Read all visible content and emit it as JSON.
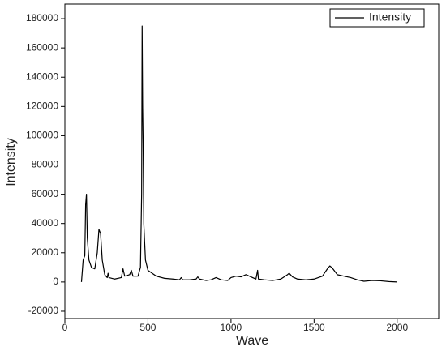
{
  "chart_data": {
    "type": "line",
    "x_label": "Wave",
    "y_label": "Intensity",
    "xlim": [
      0,
      2250
    ],
    "xticks": [
      0,
      500,
      1000,
      1500,
      2000
    ],
    "ylim": [
      -25000,
      190000
    ],
    "yticks": [
      -20000,
      0,
      20000,
      40000,
      60000,
      80000,
      100000,
      120000,
      140000,
      160000,
      180000
    ],
    "legend": "upper right",
    "grid": false,
    "series": [
      {
        "name": "Intensity",
        "color": "#000000",
        "x": [
          100,
          110,
          120,
          125,
          130,
          135,
          145,
          160,
          180,
          195,
          205,
          215,
          225,
          240,
          255,
          260,
          265,
          300,
          340,
          350,
          360,
          390,
          400,
          410,
          440,
          455,
          462,
          465,
          468,
          471,
          475,
          485,
          500,
          550,
          600,
          650,
          690,
          700,
          710,
          750,
          790,
          800,
          810,
          850,
          880,
          910,
          940,
          980,
          1000,
          1030,
          1060,
          1090,
          1120,
          1150,
          1160,
          1165,
          1200,
          1250,
          1300,
          1340,
          1350,
          1370,
          1400,
          1450,
          1500,
          1550,
          1580,
          1595,
          1610,
          1640,
          1680,
          1720,
          1760,
          1800,
          1850,
          1900,
          1950,
          2000
        ],
        "values": [
          0,
          15000,
          18000,
          53000,
          60000,
          30000,
          15000,
          10000,
          9000,
          20000,
          36000,
          33000,
          15000,
          5000,
          3000,
          6000,
          3000,
          2000,
          3000,
          9000,
          4000,
          5000,
          8000,
          4000,
          4000,
          10000,
          60000,
          175000,
          120000,
          95000,
          40000,
          15000,
          8000,
          4000,
          2500,
          2000,
          1500,
          3000,
          1500,
          1500,
          2000,
          3500,
          2000,
          1000,
          1500,
          3000,
          1500,
          1000,
          3000,
          4000,
          3500,
          5000,
          3500,
          2000,
          8000,
          2000,
          1500,
          1000,
          2000,
          5000,
          6000,
          3500,
          2000,
          1500,
          2000,
          4000,
          9000,
          11000,
          9500,
          5000,
          4000,
          3000,
          1500,
          500,
          1000,
          800,
          300,
          0
        ]
      }
    ]
  }
}
